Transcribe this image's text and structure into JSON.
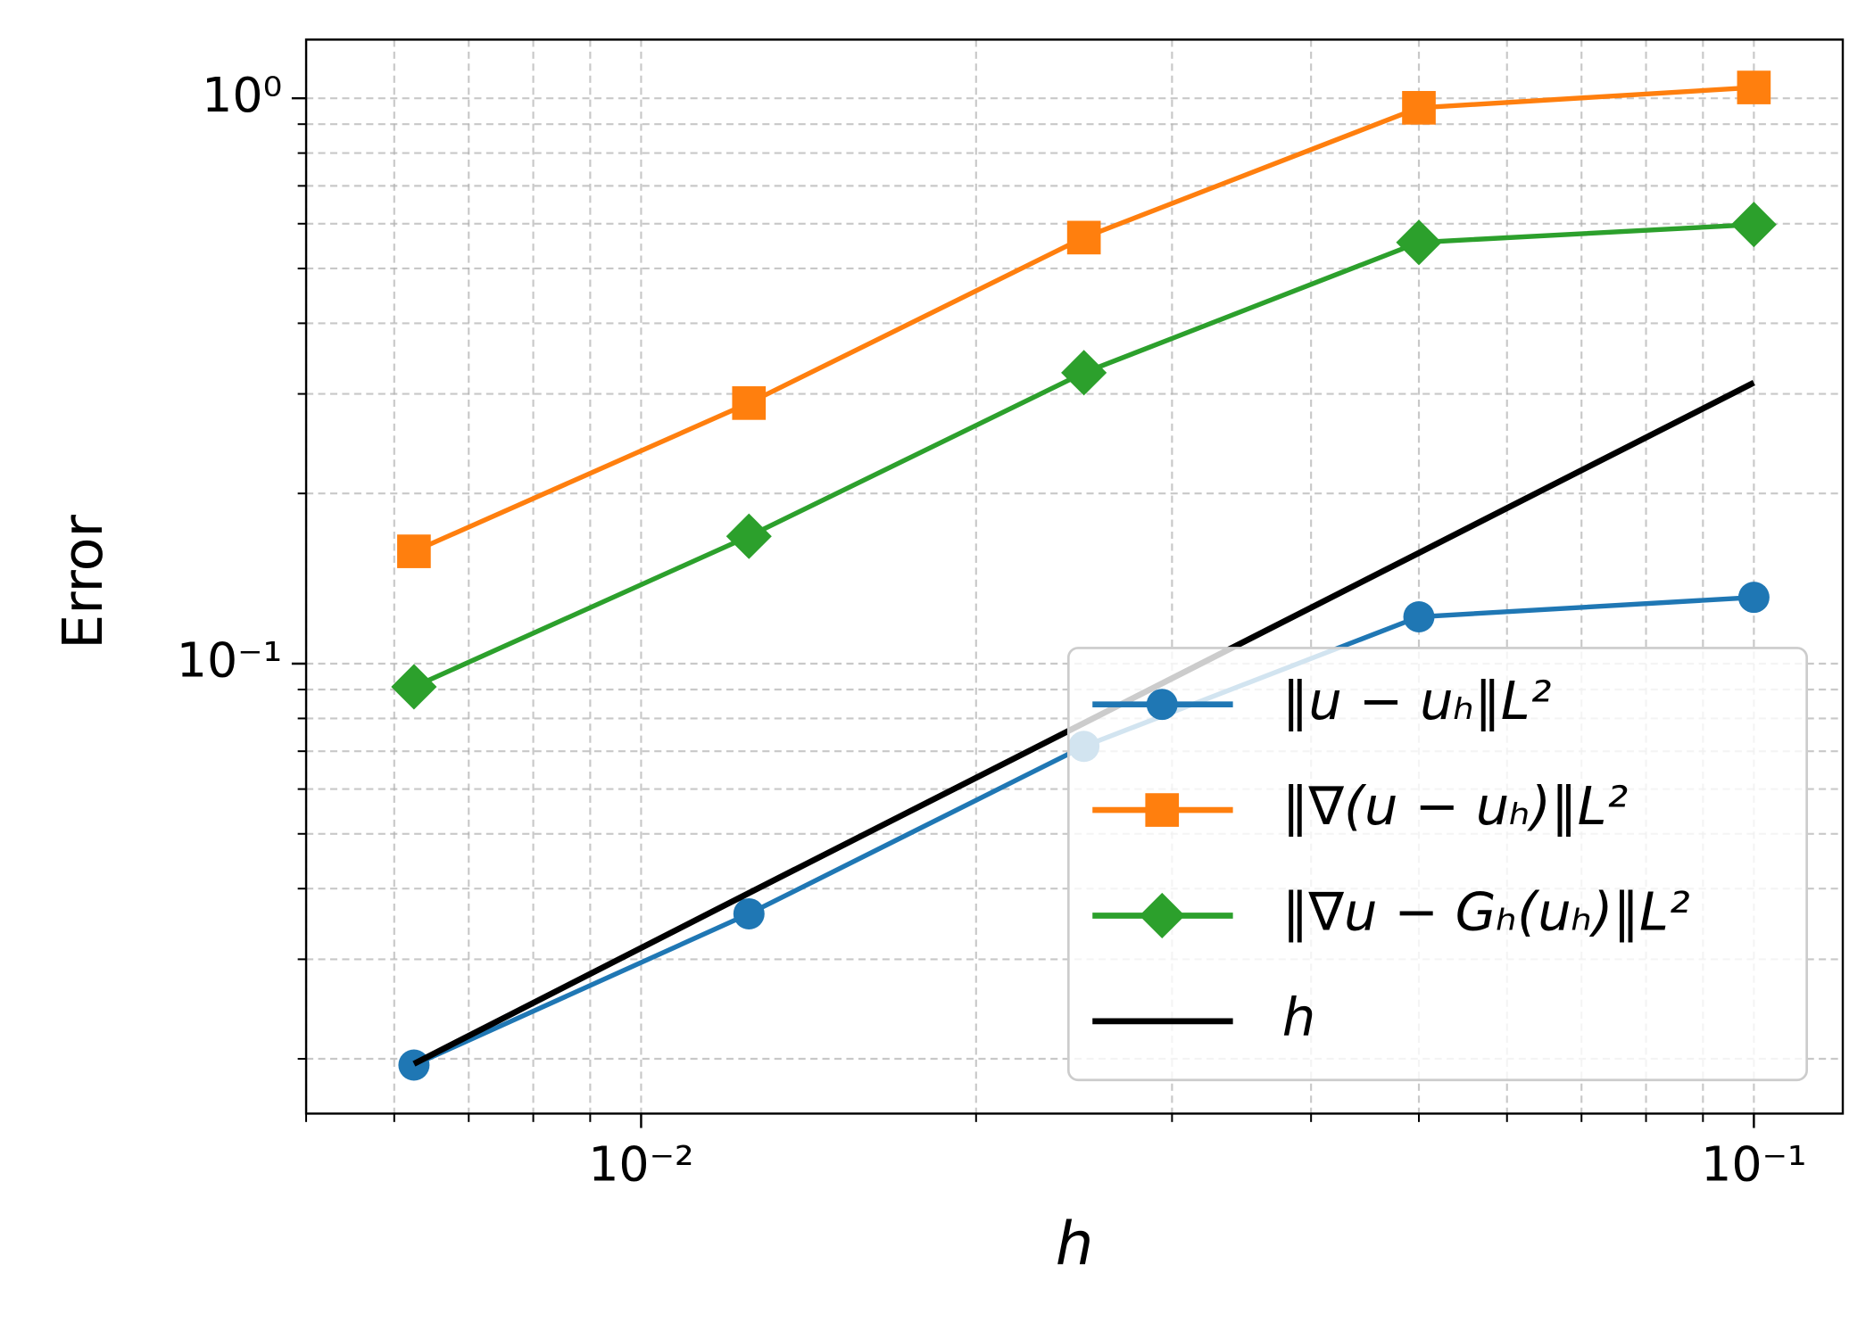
{
  "chart_data": {
    "type": "line",
    "xlabel": "h",
    "ylabel": "Error",
    "x": [
      0.00625,
      0.0125,
      0.025,
      0.05,
      0.1
    ],
    "series": [
      {
        "name": "‖u − uₕ‖L²",
        "color": "#1f77b4",
        "marker": "circle",
        "values": [
          0.0195,
          0.0361,
          0.0714,
          0.121,
          0.131
        ]
      },
      {
        "name": "‖∇(u − uₕ)‖L²",
        "color": "#ff7f0e",
        "marker": "square",
        "values": [
          0.158,
          0.289,
          0.567,
          0.962,
          1.045
        ]
      },
      {
        "name": "‖∇u − Gₕ(uₕ)‖L²",
        "color": "#2ca02c",
        "marker": "diamond",
        "values": [
          0.091,
          0.168,
          0.327,
          0.556,
          0.598
        ]
      },
      {
        "name": "h",
        "color": "#000000",
        "marker": "none",
        "values": [
          0.0196,
          0.0393,
          0.0785,
          0.157,
          0.314
        ]
      }
    ],
    "xscale": "log",
    "yscale": "log",
    "xlim": [
      0.005,
      0.1202
    ],
    "ylim": [
      0.016,
      1.27
    ],
    "xticks": [
      {
        "value": 0.01,
        "label": "10⁻²"
      },
      {
        "value": 0.1,
        "label": "10⁻¹"
      }
    ],
    "yticks": [
      {
        "value": 0.1,
        "label": "10⁻¹"
      },
      {
        "value": 1,
        "label": "10⁰"
      }
    ],
    "grid": true,
    "legend": "lower right"
  }
}
